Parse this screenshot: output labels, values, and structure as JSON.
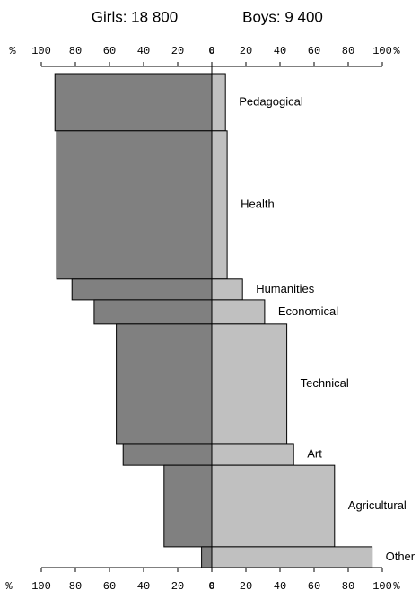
{
  "chart_data": {
    "type": "butterfly",
    "left_title": "Girls: 18 800",
    "right_title": "Boys: 9 400",
    "axis_unit": "%",
    "categories": [
      "Pedagogical",
      "Health",
      "Humanities",
      "Economical",
      "Technical",
      "Art",
      "Agricultural",
      "Other"
    ],
    "series": [
      {
        "color": "#808080",
        "values": [
          92,
          91,
          82,
          69,
          56,
          52,
          28,
          6
        ]
      },
      {
        "color": "#c0c0c0",
        "values": [
          8,
          9,
          18,
          31,
          44,
          48,
          72,
          94
        ]
      }
    ],
    "sizes": [
      11.6,
      30,
      4.2,
      4.9,
      24.2,
      4.4,
      16.5,
      4.2
    ],
    "xlim": [
      -100,
      100
    ],
    "xticks": [
      {
        "value": -100,
        "label": "100"
      },
      {
        "value": -80,
        "label": "80"
      },
      {
        "value": -60,
        "label": "60"
      },
      {
        "value": -40,
        "label": "40"
      },
      {
        "value": -20,
        "label": "20"
      },
      0,
      20,
      40,
      60,
      80,
      100
    ]
  }
}
